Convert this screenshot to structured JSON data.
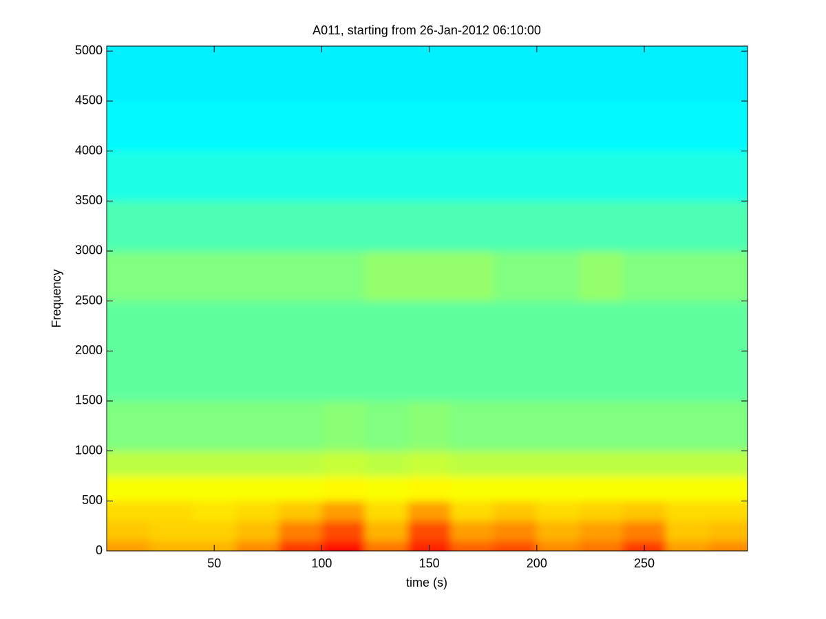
{
  "chart_data": {
    "type": "spectrogram",
    "title": "A011, starting from 26-Jan-2012 06:10:00",
    "x_label": "time (s)",
    "y_label": "Frequency",
    "colormap": "jet",
    "clim": [
      0,
      1
    ],
    "xlim": [
      0,
      298
    ],
    "ylim": [
      0,
      5050
    ],
    "xticks": [
      50,
      100,
      150,
      200,
      250
    ],
    "yticks": [
      0,
      500,
      1000,
      1500,
      2000,
      2500,
      3000,
      3500,
      4000,
      4500,
      5000
    ],
    "xbins": [
      0,
      20,
      40,
      60,
      80,
      100,
      120,
      140,
      160,
      180,
      200,
      220,
      240,
      260,
      280,
      298
    ],
    "ybins": [
      0,
      100,
      300,
      500,
      750,
      1000,
      1500,
      2000,
      2500,
      3000,
      3500,
      4000,
      4500,
      5050
    ],
    "z": [
      [
        0.72,
        0.7,
        0.7,
        0.74,
        0.82,
        0.86,
        0.76,
        0.84,
        0.78,
        0.8,
        0.74,
        0.76,
        0.82,
        0.72,
        0.74
      ],
      [
        0.68,
        0.67,
        0.67,
        0.69,
        0.75,
        0.8,
        0.7,
        0.8,
        0.72,
        0.74,
        0.7,
        0.72,
        0.75,
        0.68,
        0.69
      ],
      [
        0.66,
        0.66,
        0.65,
        0.66,
        0.68,
        0.72,
        0.66,
        0.72,
        0.66,
        0.68,
        0.66,
        0.67,
        0.68,
        0.66,
        0.66
      ],
      [
        0.62,
        0.62,
        0.62,
        0.62,
        0.62,
        0.63,
        0.62,
        0.63,
        0.62,
        0.62,
        0.62,
        0.62,
        0.62,
        0.62,
        0.62
      ],
      [
        0.56,
        0.56,
        0.56,
        0.56,
        0.56,
        0.57,
        0.56,
        0.57,
        0.56,
        0.56,
        0.56,
        0.56,
        0.56,
        0.56,
        0.56
      ],
      [
        0.5,
        0.5,
        0.5,
        0.5,
        0.5,
        0.51,
        0.5,
        0.51,
        0.5,
        0.5,
        0.5,
        0.5,
        0.5,
        0.5,
        0.5
      ],
      [
        0.47,
        0.47,
        0.47,
        0.47,
        0.47,
        0.47,
        0.47,
        0.47,
        0.47,
        0.47,
        0.47,
        0.47,
        0.47,
        0.47,
        0.47
      ],
      [
        0.47,
        0.47,
        0.47,
        0.47,
        0.47,
        0.47,
        0.47,
        0.47,
        0.47,
        0.47,
        0.47,
        0.47,
        0.47,
        0.47,
        0.47
      ],
      [
        0.5,
        0.5,
        0.5,
        0.5,
        0.5,
        0.5,
        0.52,
        0.52,
        0.52,
        0.5,
        0.5,
        0.52,
        0.5,
        0.5,
        0.5
      ],
      [
        0.45,
        0.45,
        0.45,
        0.45,
        0.45,
        0.45,
        0.45,
        0.45,
        0.45,
        0.45,
        0.45,
        0.45,
        0.45,
        0.45,
        0.45
      ],
      [
        0.4,
        0.4,
        0.4,
        0.4,
        0.4,
        0.4,
        0.4,
        0.4,
        0.4,
        0.4,
        0.4,
        0.4,
        0.4,
        0.4,
        0.4
      ],
      [
        0.37,
        0.37,
        0.37,
        0.37,
        0.37,
        0.37,
        0.37,
        0.37,
        0.37,
        0.37,
        0.37,
        0.37,
        0.37,
        0.37,
        0.37
      ],
      [
        0.36,
        0.36,
        0.36,
        0.36,
        0.36,
        0.36,
        0.36,
        0.36,
        0.36,
        0.36,
        0.36,
        0.36,
        0.36,
        0.36,
        0.36
      ]
    ]
  }
}
